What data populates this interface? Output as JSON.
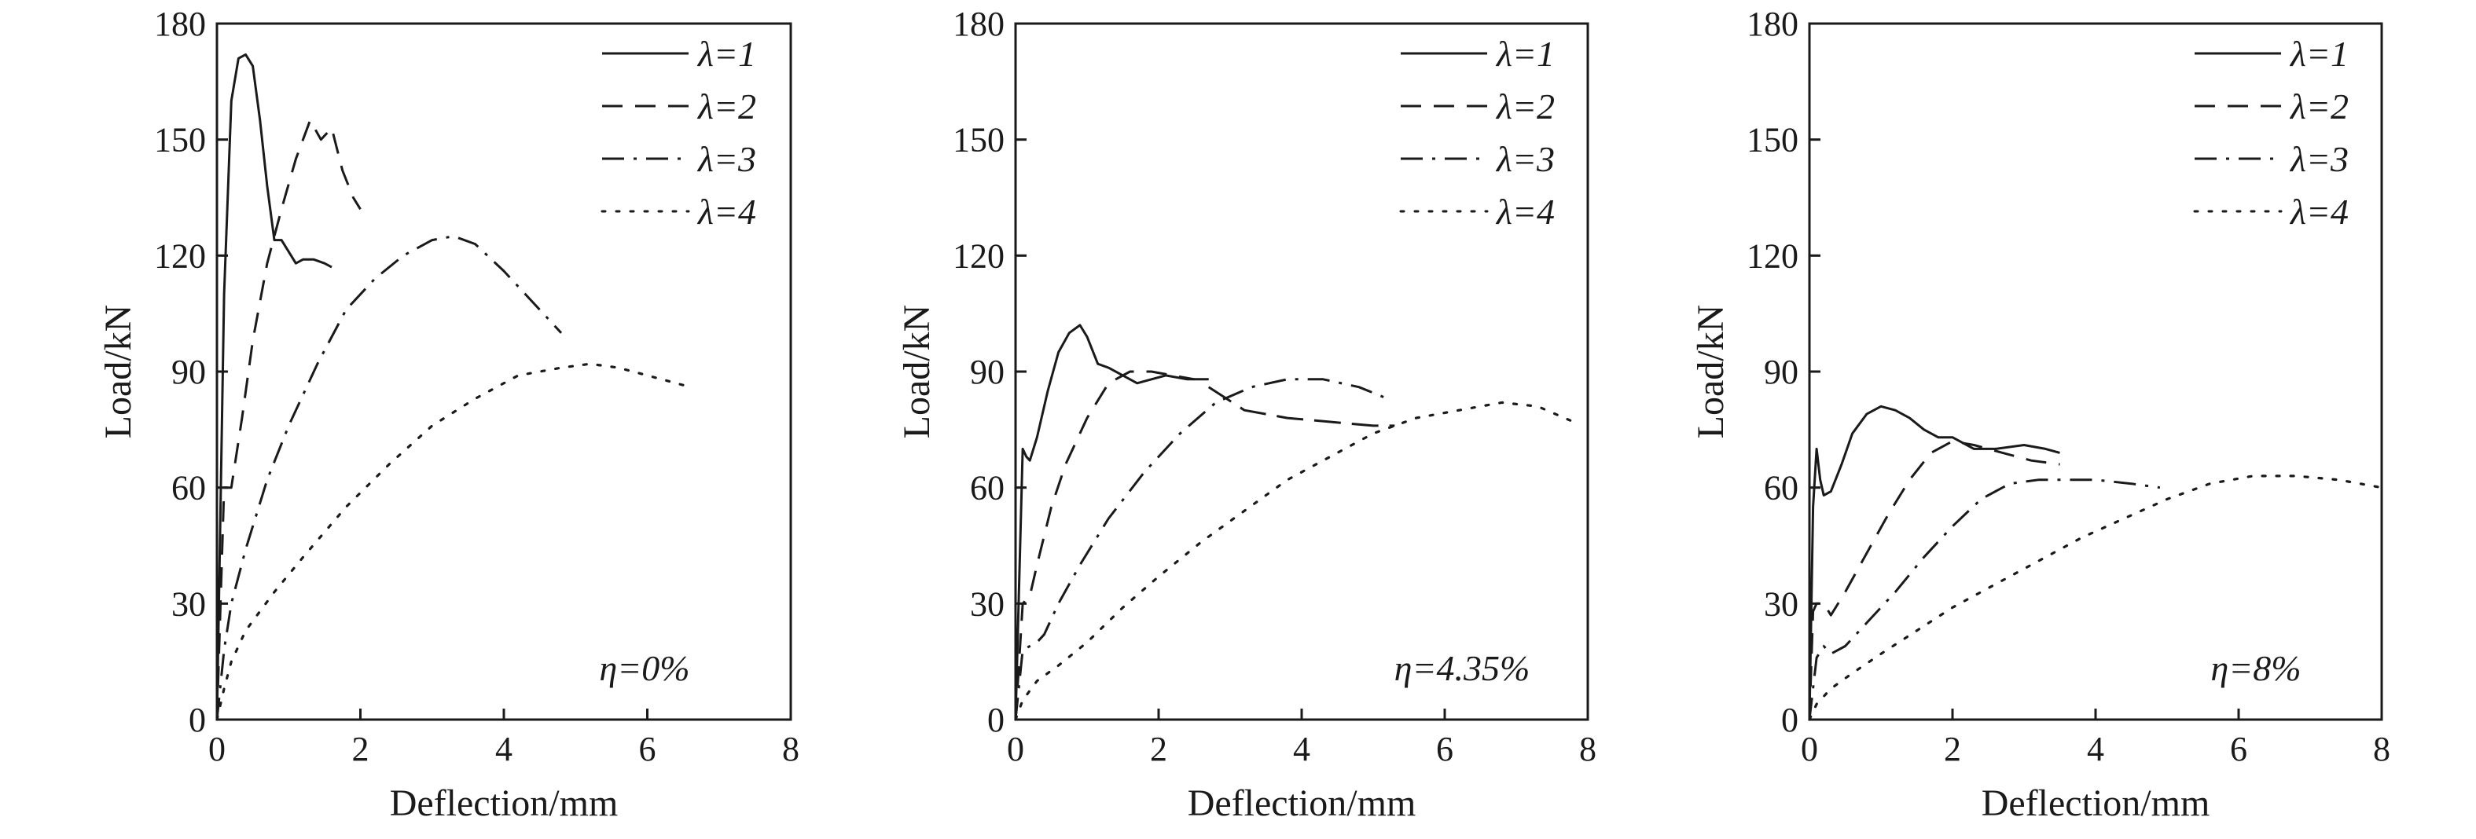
{
  "chart_data": [
    {
      "type": "line",
      "annotation": "η=0%",
      "xlabel": "Deflection/mm",
      "ylabel": "Load/kN",
      "xlim": [
        0,
        8
      ],
      "ylim": [
        0,
        180
      ],
      "xticks": [
        0,
        2,
        4,
        6,
        8
      ],
      "yticks": [
        0,
        30,
        60,
        90,
        120,
        150,
        180
      ],
      "grid": false,
      "legend": "top-right",
      "series": [
        {
          "name": "λ=1",
          "style": "solid",
          "x": [
            0,
            0.1,
            0.2,
            0.3,
            0.4,
            0.5,
            0.6,
            0.7,
            0.8,
            0.9,
            1.0,
            1.1,
            1.2,
            1.35,
            1.5,
            1.6
          ],
          "y": [
            0,
            110,
            160,
            171,
            172,
            169,
            155,
            138,
            124,
            124,
            121,
            118,
            119,
            119,
            118,
            117
          ]
        },
        {
          "name": "λ=2",
          "style": "dash",
          "x": [
            0,
            0.1,
            0.2,
            0.35,
            0.5,
            0.7,
            0.9,
            1.1,
            1.3,
            1.45,
            1.6,
            1.75,
            1.9,
            2.0
          ],
          "y": [
            0,
            60,
            60,
            78,
            98,
            118,
            132,
            145,
            155,
            150,
            153,
            142,
            135,
            132
          ]
        },
        {
          "name": "λ=3",
          "style": "dashdot",
          "x": [
            0,
            0.1,
            0.2,
            0.4,
            0.7,
            1.0,
            1.4,
            1.8,
            2.2,
            2.6,
            3.0,
            3.3,
            3.6,
            4.0,
            4.4,
            4.8
          ],
          "y": [
            0,
            18,
            30,
            44,
            62,
            76,
            92,
            106,
            114,
            120,
            124,
            125,
            123,
            116,
            108,
            100
          ]
        },
        {
          "name": "λ=4",
          "style": "dot",
          "x": [
            0,
            0.1,
            0.2,
            0.4,
            0.8,
            1.2,
            1.8,
            2.4,
            3.0,
            3.6,
            4.2,
            4.8,
            5.2,
            5.6,
            6.0,
            6.6
          ],
          "y": [
            0,
            8,
            15,
            23,
            33,
            42,
            55,
            66,
            76,
            83,
            89,
            91,
            92,
            91,
            89,
            86
          ]
        }
      ]
    },
    {
      "type": "line",
      "annotation": "η=4.35%",
      "xlabel": "Deflection/mm",
      "ylabel": "Load/kN",
      "xlim": [
        0,
        8
      ],
      "ylim": [
        0,
        180
      ],
      "xticks": [
        0,
        2,
        4,
        6,
        8
      ],
      "yticks": [
        0,
        30,
        60,
        90,
        120,
        150,
        180
      ],
      "grid": false,
      "legend": "top-right",
      "series": [
        {
          "name": "λ=1",
          "style": "solid",
          "x": [
            0,
            0.1,
            0.15,
            0.2,
            0.3,
            0.45,
            0.6,
            0.75,
            0.9,
            1.0,
            1.15,
            1.3,
            1.5,
            1.7,
            1.9,
            2.1,
            2.4,
            2.7
          ],
          "y": [
            0,
            70,
            68,
            67,
            73,
            85,
            95,
            100,
            102,
            99,
            92,
            91,
            89,
            87,
            88,
            89,
            88,
            88
          ]
        },
        {
          "name": "λ=2",
          "style": "dash",
          "x": [
            0,
            0.1,
            0.2,
            0.3,
            0.5,
            0.7,
            1.0,
            1.3,
            1.6,
            1.9,
            2.2,
            2.5
          ],
          "y": [
            0,
            30,
            32,
            40,
            55,
            66,
            78,
            87,
            90,
            90,
            89,
            88
          ]
        },
        {
          "name": "λ=3",
          "style": "dashdot",
          "x": [
            0,
            0.1,
            0.2,
            0.3,
            0.4,
            0.6,
            0.9,
            1.3,
            1.8,
            2.3,
            2.8,
            3.3,
            3.8,
            4.3,
            4.8,
            5.2
          ],
          "y": [
            0,
            18,
            19,
            20,
            22,
            30,
            40,
            52,
            64,
            74,
            82,
            86,
            88,
            88,
            86,
            83
          ]
        },
        {
          "name": "λ=4",
          "style": "dot",
          "x": [
            0,
            0.1,
            0.3,
            0.6,
            1.0,
            1.5,
            2.0,
            2.6,
            3.2,
            3.8,
            4.4,
            5.0,
            5.6,
            6.2,
            6.8,
            7.3,
            7.8
          ],
          "y": [
            0,
            5,
            10,
            14,
            20,
            29,
            37,
            46,
            54,
            62,
            68,
            74,
            78,
            80,
            82,
            81,
            77
          ]
        },
        {
          "style": "dash-long",
          "x": [
            2.7,
            3.2,
            3.8,
            4.4,
            5.0,
            5.3
          ],
          "y": [
            86,
            80,
            78,
            77,
            76,
            76
          ]
        }
      ]
    },
    {
      "type": "line",
      "annotation": "η=8%",
      "xlabel": "Deflection/mm",
      "ylabel": "Load/kN",
      "xlim": [
        0,
        8
      ],
      "ylim": [
        0,
        180
      ],
      "xticks": [
        0,
        2,
        4,
        6,
        8
      ],
      "yticks": [
        0,
        30,
        60,
        90,
        120,
        150,
        180
      ],
      "grid": false,
      "legend": "top-right",
      "series": [
        {
          "name": "λ=1",
          "style": "solid",
          "x": [
            0,
            0.05,
            0.1,
            0.15,
            0.2,
            0.3,
            0.45,
            0.6,
            0.8,
            1.0,
            1.2,
            1.4,
            1.6,
            1.8,
            2.0,
            2.3,
            2.6,
            3.0,
            3.3,
            3.5
          ],
          "y": [
            0,
            55,
            70,
            62,
            58,
            59,
            66,
            74,
            79,
            81,
            80,
            78,
            75,
            73,
            73,
            70,
            70,
            71,
            70,
            69
          ]
        },
        {
          "name": "λ=2",
          "style": "dash",
          "x": [
            0,
            0.05,
            0.1,
            0.2,
            0.3,
            0.5,
            0.8,
            1.1,
            1.4,
            1.7,
            2.0,
            2.3,
            2.7,
            3.1,
            3.5
          ],
          "y": [
            0,
            28,
            30,
            30,
            27,
            33,
            43,
            53,
            62,
            69,
            72,
            71,
            69,
            67,
            66
          ]
        },
        {
          "name": "λ=3",
          "style": "dashdot",
          "x": [
            0,
            0.1,
            0.2,
            0.3,
            0.5,
            0.8,
            1.2,
            1.6,
            2.0,
            2.4,
            2.8,
            3.2,
            3.6,
            4.0,
            4.5,
            4.9
          ],
          "y": [
            0,
            16,
            19,
            17,
            19,
            25,
            33,
            42,
            50,
            57,
            61,
            62,
            62,
            62,
            61,
            60
          ]
        },
        {
          "name": "λ=4",
          "style": "dot",
          "x": [
            0,
            0.1,
            0.3,
            0.6,
            1.0,
            1.5,
            2.0,
            2.6,
            3.2,
            3.8,
            4.4,
            5.0,
            5.6,
            6.2,
            6.8,
            7.4,
            8.0
          ],
          "y": [
            0,
            4,
            8,
            12,
            17,
            23,
            29,
            35,
            41,
            47,
            52,
            57,
            61,
            63,
            63,
            62,
            60
          ]
        }
      ]
    }
  ],
  "colors": {
    "line": "#1a1a1a",
    "background": "#ffffff"
  }
}
